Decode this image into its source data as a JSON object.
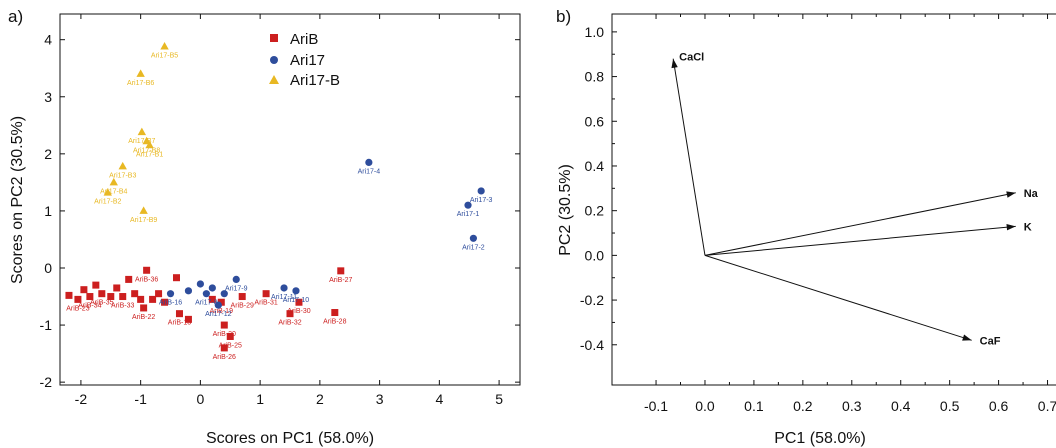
{
  "colors": {
    "AriB": "#cc1f1f",
    "Ari17": "#2e4d9c",
    "Ari17-B": "#e8b823"
  },
  "chart_data": [
    {
      "panel": "a)",
      "type": "scatter",
      "xlabel": "Scores on PC1 (58.0%)",
      "ylabel": "Scores on PC2 (30.5%)",
      "xlim": [
        -2.35,
        5.35
      ],
      "ylim": [
        -2.05,
        4.45
      ],
      "xticks": [
        -2,
        -1,
        0,
        1,
        2,
        3,
        4,
        5
      ],
      "yticks": [
        -2,
        -1,
        0,
        1,
        2,
        3,
        4
      ],
      "legend": {
        "position": "top-center",
        "entries": [
          "AriB",
          "Ari17",
          "Ari17-B"
        ]
      },
      "series": [
        {
          "name": "AriB",
          "marker": "square",
          "points": [
            {
              "x": -2.2,
              "y": -0.48,
              "label": ""
            },
            {
              "x": -2.05,
              "y": -0.55,
              "label": "AriB-23"
            },
            {
              "x": -1.95,
              "y": -0.38,
              "label": ""
            },
            {
              "x": -1.85,
              "y": -0.5,
              "label": "AriB-34"
            },
            {
              "x": -1.75,
              "y": -0.3,
              "label": ""
            },
            {
              "x": -1.65,
              "y": -0.45,
              "label": "AriB-35"
            },
            {
              "x": -1.5,
              "y": -0.5,
              "label": ""
            },
            {
              "x": -1.4,
              "y": -0.35,
              "label": ""
            },
            {
              "x": -1.3,
              "y": -0.5,
              "label": "AriB-33"
            },
            {
              "x": -1.2,
              "y": -0.2,
              "label": ""
            },
            {
              "x": -1.1,
              "y": -0.45,
              "label": ""
            },
            {
              "x": -1.0,
              "y": -0.55,
              "label": ""
            },
            {
              "x": -0.9,
              "y": -0.04,
              "label": "AriB-36"
            },
            {
              "x": -0.95,
              "y": -0.7,
              "label": "AriB-22"
            },
            {
              "x": -0.8,
              "y": -0.55,
              "label": ""
            },
            {
              "x": -0.7,
              "y": -0.45,
              "label": ""
            },
            {
              "x": -0.6,
              "y": -0.6,
              "label": ""
            },
            {
              "x": -0.4,
              "y": -0.17,
              "label": ""
            },
            {
              "x": -0.35,
              "y": -0.8,
              "label": "AriB-13"
            },
            {
              "x": -0.2,
              "y": -0.9,
              "label": ""
            },
            {
              "x": 0.2,
              "y": -0.55,
              "label": ""
            },
            {
              "x": 0.4,
              "y": -1.0,
              "label": "AriB-20"
            },
            {
              "x": 0.35,
              "y": -0.6,
              "label": "AriB-19"
            },
            {
              "x": 0.5,
              "y": -1.2,
              "label": "AriB-25"
            },
            {
              "x": 0.4,
              "y": -1.4,
              "label": "AriB-26"
            },
            {
              "x": 0.7,
              "y": -0.5,
              "label": "AriB-29"
            },
            {
              "x": 1.1,
              "y": -0.45,
              "label": "AriB-31"
            },
            {
              "x": 1.5,
              "y": -0.8,
              "label": "AriB-32"
            },
            {
              "x": 1.65,
              "y": -0.6,
              "label": "AriB-30"
            },
            {
              "x": 2.25,
              "y": -0.78,
              "label": "AriB-28"
            },
            {
              "x": 2.35,
              "y": -0.05,
              "label": "AriB-27"
            }
          ]
        },
        {
          "name": "Ari17",
          "marker": "circle",
          "points": [
            {
              "x": -0.5,
              "y": -0.45,
              "label": "AriB-16"
            },
            {
              "x": -0.2,
              "y": -0.4,
              "label": ""
            },
            {
              "x": 0.0,
              "y": -0.28,
              "label": ""
            },
            {
              "x": 0.1,
              "y": -0.45,
              "label": "Ari17-8"
            },
            {
              "x": 0.2,
              "y": -0.35,
              "label": ""
            },
            {
              "x": 0.4,
              "y": -0.45,
              "label": ""
            },
            {
              "x": 0.3,
              "y": -0.65,
              "label": "Ari17-12"
            },
            {
              "x": 0.6,
              "y": -0.2,
              "label": "Ari17-9"
            },
            {
              "x": 1.4,
              "y": -0.35,
              "label": "Ari17-11"
            },
            {
              "x": 1.6,
              "y": -0.4,
              "label": "Ari17-10"
            },
            {
              "x": 2.82,
              "y": 1.85,
              "label": "Ari17-4"
            },
            {
              "x": 4.7,
              "y": 1.35,
              "label": "Ari17-3"
            },
            {
              "x": 4.48,
              "y": 1.1,
              "label": "Ari17-1"
            },
            {
              "x": 4.57,
              "y": 0.52,
              "label": "Ari17-2"
            }
          ]
        },
        {
          "name": "Ari17-B",
          "marker": "triangle",
          "points": [
            {
              "x": -0.6,
              "y": 3.88,
              "label": "Ari17-B5"
            },
            {
              "x": -1.0,
              "y": 3.4,
              "label": "Ari17-B6"
            },
            {
              "x": -0.98,
              "y": 2.38,
              "label": "Ari17-B7"
            },
            {
              "x": -0.9,
              "y": 2.22,
              "label": "Ari17-B8"
            },
            {
              "x": -0.85,
              "y": 2.15,
              "label": "Ari17-B1"
            },
            {
              "x": -1.3,
              "y": 1.78,
              "label": "Ari17-B3"
            },
            {
              "x": -1.45,
              "y": 1.5,
              "label": "Ari17-B4"
            },
            {
              "x": -1.55,
              "y": 1.32,
              "label": "Ari17-B2"
            },
            {
              "x": -0.95,
              "y": 1.0,
              "label": "Ari17-B9"
            }
          ]
        }
      ]
    },
    {
      "panel": "b)",
      "type": "biplot-loadings",
      "xlabel": "PC1 (58.0%)",
      "ylabel": "PC2 (30.5%)",
      "xlim": [
        -0.19,
        0.75
      ],
      "ylim": [
        -0.58,
        1.08
      ],
      "xticks": [
        -0.1,
        0.0,
        0.1,
        0.2,
        0.3,
        0.4,
        0.5,
        0.6,
        0.7
      ],
      "xtick_labels": [
        "-0.1",
        "0.0",
        "0.1",
        "0.2",
        "0.3",
        "0.4",
        "0.5",
        "0.6",
        "0.7"
      ],
      "yticks": [
        -0.4,
        -0.2,
        0.0,
        0.2,
        0.4,
        0.6,
        0.8,
        1.0
      ],
      "ytick_labels": [
        "-0.4",
        "-0.2",
        "0.0",
        "0.2",
        "0.4",
        "0.6",
        "0.8",
        "1.0"
      ],
      "vectors": [
        {
          "name": "CaCl",
          "x": -0.065,
          "y": 0.88
        },
        {
          "name": "Na",
          "x": 0.635,
          "y": 0.28
        },
        {
          "name": "K",
          "x": 0.635,
          "y": 0.13
        },
        {
          "name": "CaF",
          "x": 0.545,
          "y": -0.38
        }
      ]
    }
  ]
}
